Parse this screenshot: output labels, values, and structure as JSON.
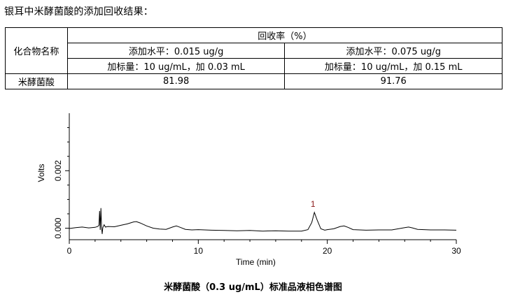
{
  "intro": "银耳中米酵菌酸的添加回收结果：",
  "table": {
    "col_header": "化合物名称",
    "group_header": "回收率（%）",
    "levels": [
      "添加水平：0.015 ug/g",
      "添加水平：0.075 ug/g"
    ],
    "spikes": [
      "加标量：10 ug/mL，加 0.03 mL",
      "加标量：10 ug/mL，加 0.15 mL"
    ],
    "rows": [
      {
        "compound": "米酵菌酸",
        "values": [
          "81.98",
          "91.76"
        ]
      }
    ]
  },
  "chart_data": {
    "type": "line",
    "xlabel": "Time (min)",
    "ylabel": "Volts",
    "xlim": [
      0,
      30
    ],
    "ylim": [
      -0.0004,
      0.004
    ],
    "xticks": [
      "0",
      "10",
      "20",
      "30"
    ],
    "yticks": [
      "0.000",
      "0.002"
    ],
    "peak_label": "1",
    "peak_time": 19.0,
    "series": [
      {
        "x": [
          0,
          0.5,
          1,
          1.5,
          2,
          2.2,
          2.3,
          2.35,
          2.4,
          2.45,
          2.5,
          2.55,
          2.6,
          2.7,
          2.8,
          3,
          3.5,
          4,
          4.5,
          5,
          5.2,
          5.5,
          6,
          6.5,
          7,
          7.5,
          8,
          8.3,
          8.6,
          9,
          9.5,
          10,
          11,
          12,
          13,
          14,
          15,
          16,
          17,
          18,
          18.5,
          18.8,
          19,
          19.2,
          19.5,
          19.8,
          20,
          20.5,
          21,
          21.3,
          21.6,
          22,
          23,
          24,
          25,
          26,
          26.3,
          26.6,
          27,
          28,
          29,
          30
        ],
        "y": [
          -1e-05,
          2e-05,
          4e-05,
          1e-05,
          3e-05,
          6e-05,
          0.0001,
          0.0006,
          -6e-05,
          0.0007,
          5e-05,
          -0.0002,
          2e-05,
          0.00012,
          4e-05,
          6e-05,
          5e-05,
          0.0001,
          0.00015,
          0.00022,
          0.00023,
          0.00018,
          8e-05,
          0.0,
          -3e-05,
          -4e-05,
          4e-05,
          8e-05,
          3e-05,
          -4e-05,
          -6e-05,
          -5e-05,
          -7e-05,
          -8e-05,
          -9e-05,
          -8e-05,
          -0.0001,
          -9e-05,
          -0.0001,
          -0.0001,
          -5e-05,
          0.0002,
          0.00055,
          0.0003,
          -2e-05,
          -7e-05,
          -5e-05,
          -2e-05,
          6e-05,
          8e-05,
          3e-05,
          -5e-05,
          -7e-05,
          -6e-05,
          -6e-05,
          2e-05,
          4e-05,
          1e-05,
          -4e-05,
          -6e-05,
          -6e-05,
          -7e-05
        ]
      }
    ]
  },
  "caption": "米酵菌酸（0.3 ug/mL）标准品液相色谱图"
}
